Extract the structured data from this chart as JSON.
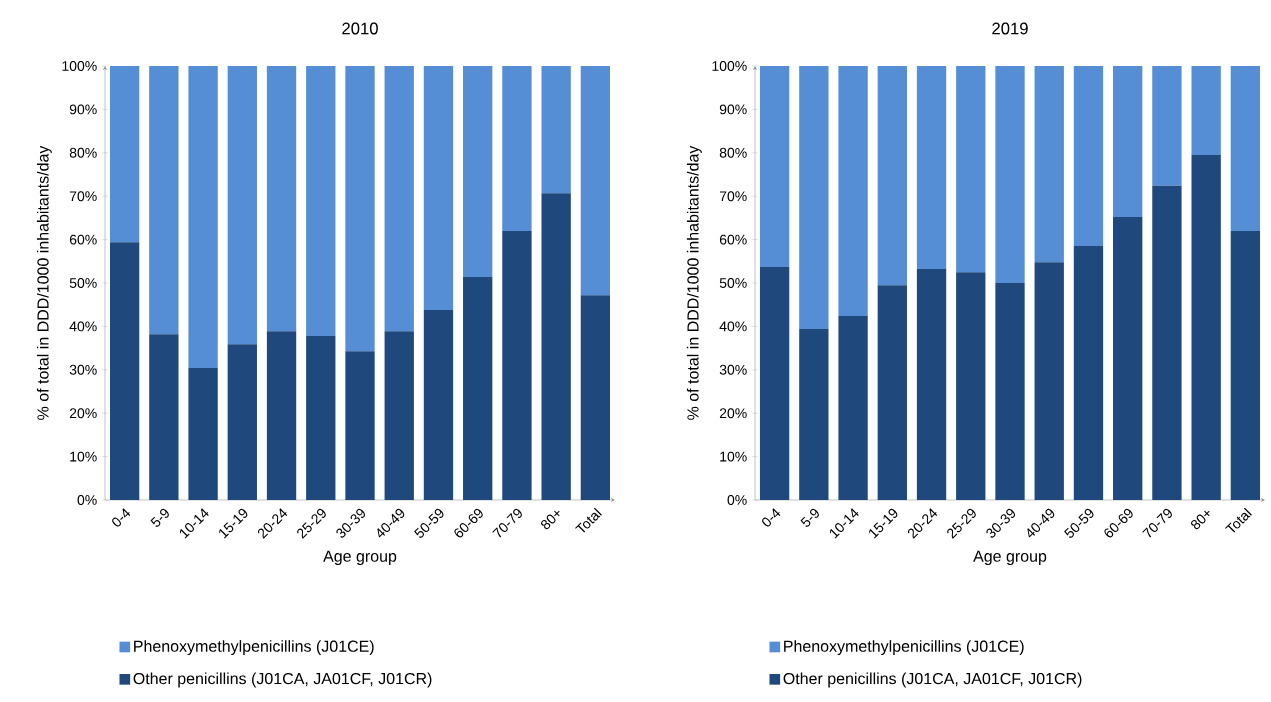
{
  "chart_data": [
    {
      "type": "bar",
      "title": "2010",
      "xlabel": "Age group",
      "ylabel": "% of total in DDD/1000 inhabitants/day",
      "stacked": true,
      "legend": "bottom",
      "categories": [
        "0-4",
        "5-9",
        "10-14",
        "15-19",
        "20-24",
        "25-29",
        "30-39",
        "40-49",
        "50-59",
        "60-69",
        "70-79",
        "80+",
        "Total"
      ],
      "series": [
        {
          "name": "Other penicillins (J01CA, JA01CF, J01CR)",
          "color": "#1f497d",
          "values": [
            59.4,
            38.2,
            30.4,
            35.9,
            38.9,
            37.8,
            34.3,
            38.9,
            43.8,
            51.4,
            62.0,
            70.7,
            47.2
          ]
        },
        {
          "name": "Phenoxymethylpenicillins (J01CE)",
          "color": "#558ed5",
          "values": [
            40.6,
            61.8,
            69.6,
            64.1,
            61.1,
            62.2,
            65.7,
            61.1,
            56.2,
            48.6,
            38.0,
            29.3,
            52.8
          ]
        }
      ],
      "ylim": [
        0,
        100
      ],
      "yticks": [
        {
          "value": 0,
          "label": "0%"
        },
        {
          "value": 10,
          "label": "10%"
        },
        {
          "value": 20,
          "label": "20%"
        },
        {
          "value": 30,
          "label": "30%"
        },
        {
          "value": 40,
          "label": "40%"
        },
        {
          "value": 50,
          "label": "50%"
        },
        {
          "value": 60,
          "label": "60%"
        },
        {
          "value": 70,
          "label": "70%"
        },
        {
          "value": 80,
          "label": "80%"
        },
        {
          "value": 90,
          "label": "90%"
        },
        {
          "value": 100,
          "label": "100%"
        }
      ]
    },
    {
      "type": "bar",
      "title": "2019",
      "xlabel": "Age group",
      "ylabel": "% of total in DDD/1000 inhabitants/day",
      "stacked": true,
      "legend": "bottom",
      "categories": [
        "0-4",
        "5-9",
        "10-14",
        "15-19",
        "20-24",
        "25-29",
        "30-39",
        "40-49",
        "50-59",
        "60-69",
        "70-79",
        "80+",
        "Total"
      ],
      "series": [
        {
          "name": "Other penicillins (J01CA, JA01CF, J01CR)",
          "color": "#1f497d",
          "values": [
            53.7,
            39.4,
            42.4,
            49.5,
            53.2,
            52.5,
            50.0,
            54.8,
            58.5,
            65.2,
            72.4,
            79.5,
            62.0
          ]
        },
        {
          "name": "Phenoxymethylpenicillins (J01CE)",
          "color": "#558ed5",
          "values": [
            46.3,
            60.6,
            57.6,
            50.5,
            46.8,
            47.5,
            50.0,
            45.2,
            41.5,
            34.8,
            27.6,
            20.5,
            38.0
          ]
        }
      ],
      "ylim": [
        0,
        100
      ],
      "yticks": [
        {
          "value": 0,
          "label": "0%"
        },
        {
          "value": 10,
          "label": "10%"
        },
        {
          "value": 20,
          "label": "20%"
        },
        {
          "value": 30,
          "label": "30%"
        },
        {
          "value": 40,
          "label": "40%"
        },
        {
          "value": 50,
          "label": "50%"
        },
        {
          "value": 60,
          "label": "60%"
        },
        {
          "value": 70,
          "label": "70%"
        },
        {
          "value": 80,
          "label": "80%"
        },
        {
          "value": 90,
          "label": "90%"
        },
        {
          "value": 100,
          "label": "100%"
        }
      ]
    }
  ]
}
